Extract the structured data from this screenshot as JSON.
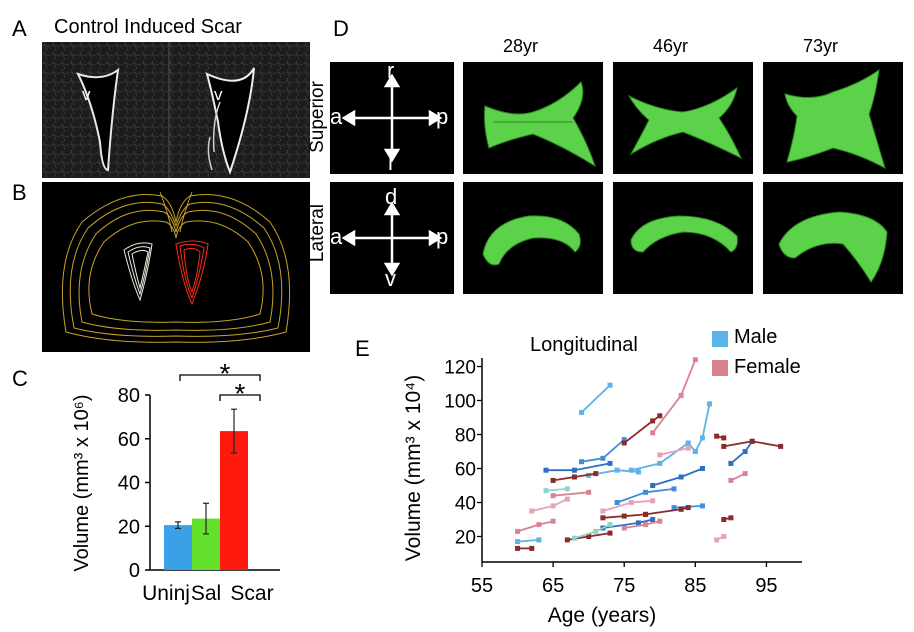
{
  "panel_labels": {
    "A": "A",
    "B": "B",
    "C": "C",
    "D": "D",
    "E": "E"
  },
  "panel_a": {
    "title": "Control Induced Scar",
    "ventricle_left": "v",
    "ventricle_right": "v"
  },
  "panel_d": {
    "ages": [
      "28yr",
      "46yr",
      "73yr"
    ],
    "row_superior": "Superior",
    "row_lateral": "Lateral",
    "axes_superior": {
      "left": "a",
      "right": "p",
      "up": "r",
      "down": "l"
    },
    "axes_lateral": {
      "left": "a",
      "right": "p",
      "up": "d",
      "down": "v"
    },
    "mesh_color": "#5cd24a"
  },
  "panel_c": {
    "significance_top": "*",
    "significance_bottom": "*"
  },
  "panel_e": {
    "title": "Longitudinal",
    "legend": [
      {
        "label": "Male",
        "color": "#5cb3e8"
      },
      {
        "label": "Female",
        "color": "#d88393"
      }
    ]
  },
  "chart_data": [
    {
      "type": "bar",
      "panel": "C",
      "categories": [
        "Uninj",
        "Sal",
        "Scar"
      ],
      "values": [
        20.5,
        23.5,
        63.5
      ],
      "errors": [
        1.5,
        7,
        10
      ],
      "colors": [
        "#3aa0e8",
        "#63e02c",
        "#ff1a10"
      ],
      "ylabel": "Volume (mm³ x 10⁶)",
      "ylim": [
        0,
        80
      ],
      "yticks": [
        0,
        20,
        40,
        60,
        80
      ]
    },
    {
      "type": "line",
      "panel": "E",
      "title": "Longitudinal",
      "xlabel": "Age (years)",
      "ylabel": "Volume (mm³ x 10⁴)",
      "xlim": [
        55,
        100
      ],
      "ylim": [
        5,
        125
      ],
      "xticks": [
        55,
        65,
        75,
        85,
        95
      ],
      "yticks": [
        20,
        40,
        60,
        80,
        100,
        120
      ],
      "series": [
        {
          "color": "#5cb3e8",
          "x": [
            69,
            73
          ],
          "y": [
            93,
            109
          ]
        },
        {
          "color": "#2e6fc4",
          "x": [
            64,
            68,
            73
          ],
          "y": [
            59,
            59,
            63
          ]
        },
        {
          "color": "#3e8ee0",
          "x": [
            69,
            72,
            75
          ],
          "y": [
            64,
            66,
            77
          ]
        },
        {
          "color": "#5cb3e8",
          "x": [
            76,
            80,
            84,
            85
          ],
          "y": [
            59,
            63,
            75,
            70
          ]
        },
        {
          "color": "#5cb3e8",
          "x": [
            85,
            86,
            87
          ],
          "y": [
            70,
            78,
            98
          ]
        },
        {
          "color": "#2e6fc4",
          "x": [
            90,
            92,
            93
          ],
          "y": [
            63,
            70,
            76
          ]
        },
        {
          "color": "#5cb3e8",
          "x": [
            70,
            74,
            77
          ],
          "y": [
            56,
            59,
            58
          ]
        },
        {
          "color": "#3e8ee0",
          "x": [
            74,
            78,
            82
          ],
          "y": [
            40,
            46,
            48
          ]
        },
        {
          "color": "#2e6fc4",
          "x": [
            79,
            83,
            86
          ],
          "y": [
            50,
            55,
            60
          ]
        },
        {
          "color": "#5cb3e8",
          "x": [
            60,
            63
          ],
          "y": [
            17,
            18
          ]
        },
        {
          "color": "#2e6fc4",
          "x": [
            72,
            77,
            79
          ],
          "y": [
            25,
            28,
            30
          ]
        },
        {
          "color": "#3e8ee0",
          "x": [
            82,
            86
          ],
          "y": [
            37,
            38
          ]
        },
        {
          "color": "#8b2a2a",
          "x": [
            65,
            68,
            71
          ],
          "y": [
            53,
            55,
            57
          ]
        },
        {
          "color": "#8b2a2a",
          "x": [
            75,
            79,
            80
          ],
          "y": [
            75,
            88,
            91
          ]
        },
        {
          "color": "#8b2a2a",
          "x": [
            78,
            83,
            84
          ],
          "y": [
            33,
            36,
            37
          ]
        },
        {
          "color": "#8b2a2a",
          "x": [
            89,
            93,
            97
          ],
          "y": [
            73,
            76,
            73
          ]
        },
        {
          "color": "#8b2a2a",
          "x": [
            60,
            62
          ],
          "y": [
            13,
            13
          ]
        },
        {
          "color": "#8b2a2a",
          "x": [
            67,
            70,
            73
          ],
          "y": [
            18,
            20,
            22
          ]
        },
        {
          "color": "#8b2a2a",
          "x": [
            72,
            75,
            78
          ],
          "y": [
            31,
            32,
            33
          ]
        },
        {
          "color": "#8b2a2a",
          "x": [
            89,
            90
          ],
          "y": [
            30,
            31
          ]
        },
        {
          "color": "#8b2a2a",
          "x": [
            88,
            89
          ],
          "y": [
            79,
            78
          ]
        },
        {
          "color": "#d88393",
          "x": [
            79,
            83,
            85
          ],
          "y": [
            81,
            103,
            124
          ]
        },
        {
          "color": "#d88393",
          "x": [
            60,
            63,
            65
          ],
          "y": [
            23,
            27,
            29
          ]
        },
        {
          "color": "#d88393",
          "x": [
            65,
            70
          ],
          "y": [
            44,
            46
          ]
        },
        {
          "color": "#e6a3b0",
          "x": [
            80,
            84
          ],
          "y": [
            68,
            72
          ]
        },
        {
          "color": "#d88393",
          "x": [
            90,
            92
          ],
          "y": [
            53,
            57
          ]
        },
        {
          "color": "#e6a3b0",
          "x": [
            72,
            76,
            79
          ],
          "y": [
            35,
            40,
            41
          ]
        },
        {
          "color": "#d88393",
          "x": [
            75,
            78,
            80
          ],
          "y": [
            25,
            27,
            29
          ]
        },
        {
          "color": "#e6a3b0",
          "x": [
            88,
            89
          ],
          "y": [
            18,
            20
          ]
        },
        {
          "color": "#8fd4c8",
          "x": [
            68,
            71,
            73
          ],
          "y": [
            19,
            23,
            27
          ]
        },
        {
          "color": "#8fd4c8",
          "x": [
            64,
            67
          ],
          "y": [
            47,
            48
          ]
        },
        {
          "color": "#e6a3b0",
          "x": [
            62,
            65,
            67
          ],
          "y": [
            35,
            38,
            42
          ]
        }
      ]
    }
  ]
}
